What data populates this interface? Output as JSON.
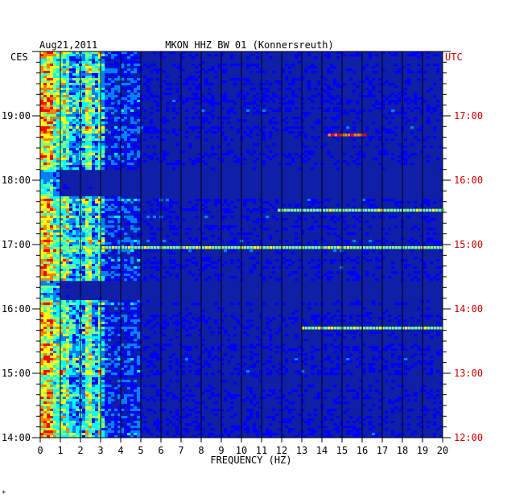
{
  "header": {
    "date": "Aug21,2011",
    "station": "MKON HHZ BW 01 (Konnersreuth)"
  },
  "chart_data": {
    "type": "heatmap",
    "xlabel": "FREQUENCY (HZ)",
    "xlim": [
      0,
      20
    ],
    "x_ticks": [
      0,
      1,
      2,
      3,
      4,
      5,
      6,
      7,
      8,
      9,
      10,
      11,
      12,
      13,
      14,
      15,
      16,
      17,
      18,
      19,
      20
    ],
    "left_axis": {
      "label": "CES",
      "color": "#000000",
      "ticks": [
        "19:00",
        "18:00",
        "17:00",
        "16:00",
        "15:00",
        "14:00"
      ]
    },
    "right_axis": {
      "label": "UTC",
      "color": "#cc0000",
      "ticks": [
        "17:00",
        "16:00",
        "15:00",
        "14:00",
        "13:00",
        "12:00"
      ]
    },
    "time_span_hours": [
      14.0,
      20.0
    ],
    "colormap": [
      "#00007f",
      "#0000ff",
      "#0080ff",
      "#00ffff",
      "#80ff80",
      "#ffff00",
      "#ff8000",
      "#ff0000"
    ],
    "background_level_color": "#0f1fa6",
    "quiet_bands_local_hours": [
      [
        17.75,
        18.15
      ],
      [
        16.15,
        16.45
      ]
    ],
    "persistent_lines_hz": [
      2.4,
      3.0
    ],
    "events": [
      {
        "time": 18.7,
        "f_start": 14.3,
        "f_end": 16.2,
        "level": "high"
      },
      {
        "time": 17.53,
        "f_start": 11.8,
        "f_end": 20.0,
        "level": "medium"
      },
      {
        "time": 15.7,
        "f_start": 13.0,
        "f_end": 20.0,
        "level": "medium"
      },
      {
        "time": 16.95,
        "f_start": 1.0,
        "f_end": 20.0,
        "level": "medium"
      }
    ]
  },
  "footer": {
    "mark": "*"
  }
}
